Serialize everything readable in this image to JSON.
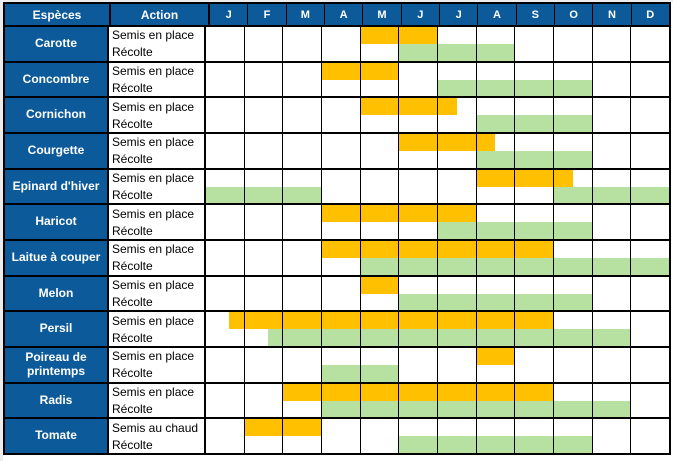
{
  "header": {
    "species_label": "Espèces",
    "action_label": "Action"
  },
  "colors": {
    "blue": "#0d5a9b",
    "semis": "#ffc000",
    "recolte": "#b7e1a1",
    "grid": "#000000",
    "header_text": "#ffffff",
    "gutter": "#ececec"
  },
  "chart_data": {
    "type": "gantt",
    "description": "Calendrier de semis et de récolte par espèce; segments en index de mois (0 = janvier), fractions = mois partiel, intervalle [début, fin)",
    "months": [
      "J",
      "F",
      "M",
      "A",
      "M",
      "J",
      "J",
      "A",
      "S",
      "O",
      "N",
      "D"
    ],
    "legend": {
      "semis": "orange",
      "recolte": "vert clair"
    },
    "rows": [
      {
        "species": "Carotte",
        "actions": [
          {
            "label": "Semis en place",
            "kind": "semis",
            "segments": [
              [
                4,
                6
              ]
            ]
          },
          {
            "label": "Récolte",
            "kind": "recolte",
            "segments": [
              [
                5,
                8
              ]
            ]
          }
        ]
      },
      {
        "species": "Concombre",
        "actions": [
          {
            "label": "Semis en place",
            "kind": "semis",
            "segments": [
              [
                3,
                5
              ]
            ]
          },
          {
            "label": "Récolte",
            "kind": "recolte",
            "segments": [
              [
                6,
                10
              ]
            ]
          }
        ]
      },
      {
        "species": "Cornichon",
        "actions": [
          {
            "label": "Semis en place",
            "kind": "semis",
            "segments": [
              [
                4,
                6.5
              ]
            ]
          },
          {
            "label": "Récolte",
            "kind": "recolte",
            "segments": [
              [
                7,
                10
              ]
            ]
          }
        ]
      },
      {
        "species": "Courgette",
        "actions": [
          {
            "label": "Semis en place",
            "kind": "semis",
            "segments": [
              [
                5,
                7.5
              ]
            ]
          },
          {
            "label": "Récolte",
            "kind": "recolte",
            "segments": [
              [
                7,
                10
              ]
            ]
          }
        ]
      },
      {
        "species": "Epinard d'hiver",
        "actions": [
          {
            "label": "Semis en place",
            "kind": "semis",
            "segments": [
              [
                7,
                9.5
              ]
            ]
          },
          {
            "label": "Récolte",
            "kind": "recolte",
            "segments": [
              [
                0,
                3
              ],
              [
                9,
                12
              ]
            ]
          }
        ]
      },
      {
        "species": "Haricot",
        "actions": [
          {
            "label": "Semis en place",
            "kind": "semis",
            "segments": [
              [
                3,
                7
              ]
            ]
          },
          {
            "label": "Récolte",
            "kind": "recolte",
            "segments": [
              [
                6,
                10
              ]
            ]
          }
        ]
      },
      {
        "species": "Laitue à couper",
        "actions": [
          {
            "label": "Semis en place",
            "kind": "semis",
            "segments": [
              [
                3,
                9
              ]
            ]
          },
          {
            "label": "Récolte",
            "kind": "recolte",
            "segments": [
              [
                4,
                12
              ]
            ]
          }
        ]
      },
      {
        "species": "Melon",
        "actions": [
          {
            "label": "Semis en place",
            "kind": "semis",
            "segments": [
              [
                4,
                5
              ]
            ]
          },
          {
            "label": "Récolte",
            "kind": "recolte",
            "segments": [
              [
                5,
                10
              ]
            ]
          }
        ]
      },
      {
        "species": "Persil",
        "actions": [
          {
            "label": "Semis en place",
            "kind": "semis",
            "segments": [
              [
                0.6,
                9
              ]
            ]
          },
          {
            "label": "Récolte",
            "kind": "recolte",
            "segments": [
              [
                1.6,
                11
              ]
            ]
          }
        ]
      },
      {
        "species": "Poireau de printemps",
        "actions": [
          {
            "label": "Semis en place",
            "kind": "semis",
            "segments": [
              [
                7,
                8
              ]
            ]
          },
          {
            "label": "Récolte",
            "kind": "recolte",
            "segments": [
              [
                3,
                5
              ]
            ]
          }
        ]
      },
      {
        "species": "Radis",
        "actions": [
          {
            "label": "Semis en place",
            "kind": "semis",
            "segments": [
              [
                2,
                9
              ]
            ]
          },
          {
            "label": "Récolte",
            "kind": "recolte",
            "segments": [
              [
                3,
                11
              ]
            ]
          }
        ]
      },
      {
        "species": "Tomate",
        "actions": [
          {
            "label": "Semis au chaud",
            "kind": "semis",
            "segments": [
              [
                1,
                3
              ]
            ]
          },
          {
            "label": "Récolte",
            "kind": "recolte",
            "segments": [
              [
                5,
                10
              ]
            ]
          }
        ]
      }
    ]
  }
}
